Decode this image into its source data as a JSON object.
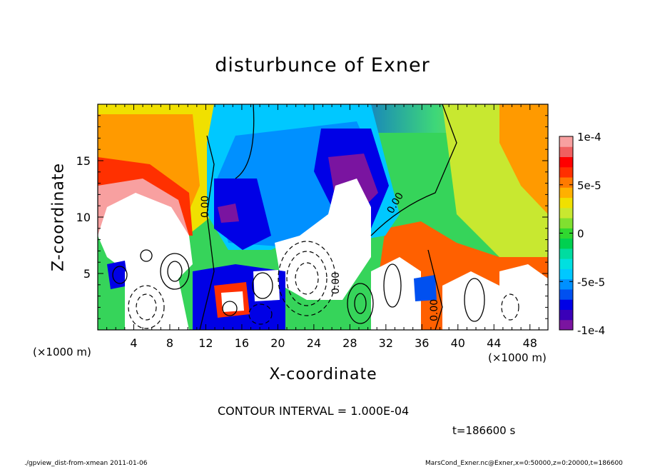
{
  "chart_data": {
    "type": "heatmap",
    "title": "disturbunce of Exner",
    "xlabel": "X-coordinate",
    "ylabel": "Z-coordinate",
    "x_scale_note": "(×1000 m)",
    "xlim": [
      0,
      50
    ],
    "ylim": [
      0,
      20
    ],
    "x_ticks": [
      4,
      8,
      12,
      16,
      20,
      24,
      28,
      32,
      36,
      40,
      44,
      48
    ],
    "y_ticks": [
      5,
      10,
      15
    ],
    "colorbar": {
      "range": [
        -0.0001,
        0.0001
      ],
      "tick_labels": [
        "1e-4",
        "5e-5",
        "0",
        "-5e-5",
        "-1e-4"
      ],
      "tick_values": [
        0.0001,
        5e-05,
        0,
        -5e-05,
        -0.0001
      ],
      "colors": [
        "#7a14a0",
        "#3a00b8",
        "#0000e6",
        "#0050f0",
        "#0090ff",
        "#00c8ff",
        "#00e0e0",
        "#00dca0",
        "#00d050",
        "#30d830",
        "#80e030",
        "#c8e830",
        "#f0e000",
        "#ffb000",
        "#ff7a00",
        "#ff3000",
        "#ff0000",
        "#f06060",
        "#f8a0a0"
      ]
    },
    "contour_labels": [
      "0.00",
      "0.00",
      "0.00",
      "0.00"
    ],
    "contour_interval_text": "CONTOUR INTERVAL = 1.000E-04",
    "time_text": "t=186600 s"
  },
  "footer": {
    "left": "./gpview_dist-from-xmean  2011-01-06",
    "right": "MarsCond_Exner.nc@Exner,x=0:50000,z=0:20000,t=186600"
  }
}
